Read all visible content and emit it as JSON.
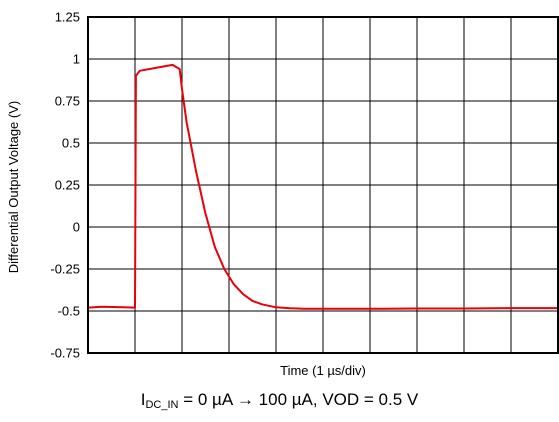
{
  "chart_data": {
    "type": "line",
    "xlabel": "Time (1 µs/div)",
    "ylabel": "Differential Output Voltage (V)",
    "ylim": [
      -0.75,
      1.25
    ],
    "yticks": [
      "-0.75",
      "-0.5",
      "-0.25",
      "0",
      "0.25",
      "0.5",
      "0.75",
      "1",
      "1.25"
    ],
    "xlim": [
      0,
      10
    ],
    "x_divisions": 10,
    "grid": true,
    "color": "#e8000b",
    "series": [
      {
        "x": [
          0,
          0.3,
          1.0,
          1.02,
          1.1,
          1.5,
          1.8,
          1.95,
          2.0,
          2.1,
          2.3,
          2.5,
          2.7,
          2.9,
          3.1,
          3.3,
          3.5,
          3.7,
          4.0,
          4.3,
          4.6,
          5.0,
          6.0,
          7.0,
          8.0,
          9.0,
          10.0
        ],
        "y": [
          -0.48,
          -0.475,
          -0.48,
          0.9,
          0.93,
          0.95,
          0.965,
          0.94,
          0.82,
          0.62,
          0.33,
          0.08,
          -0.12,
          -0.25,
          -0.34,
          -0.4,
          -0.44,
          -0.46,
          -0.478,
          -0.484,
          -0.487,
          -0.487,
          -0.487,
          -0.485,
          -0.485,
          -0.483,
          -0.483
        ]
      }
    ]
  },
  "caption": {
    "pre": "I",
    "sub": "DC_IN",
    "post": " = 0 µA → 100 µA, VOD = 0.5 V"
  }
}
